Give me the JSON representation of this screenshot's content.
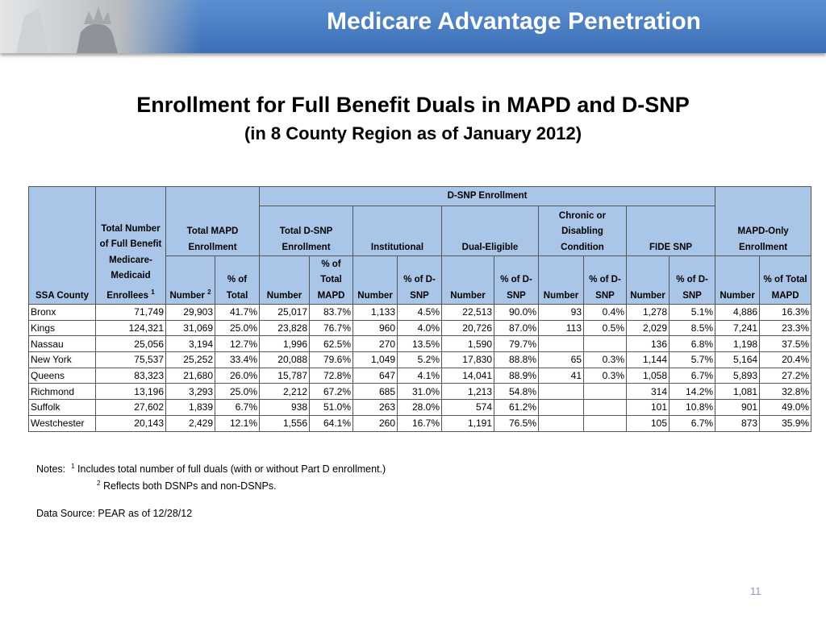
{
  "header": {
    "title": "Medicare Advantage Penetration"
  },
  "heading": {
    "title": "Enrollment for Full Benefit Duals in MAPD and D-SNP",
    "subtitle": "(in 8 County Region as of January 2012)"
  },
  "table": {
    "group": "D-SNP Enrollment",
    "column_groups": [
      "Total MAPD Enrollment",
      "Total D-SNP Enrollment",
      "Institutional",
      "Dual-Eligible",
      "Chronic or Disabling Condition",
      "FIDE SNP",
      "MAPD-Only Enrollment"
    ],
    "columns": [
      "SSA County",
      "Total Number of Full Benefit Medicare-Medicaid Enrollees",
      "Number",
      "% of Total",
      "Number",
      "% of Total MAPD",
      "Number",
      "% of D-SNP",
      "Number",
      "% of D-SNP",
      "Number",
      "% of D-SNP",
      "Number",
      "% of D-SNP",
      "Number",
      "% of Total MAPD"
    ],
    "column_notes": [
      "1",
      "2"
    ],
    "rows": [
      [
        "Bronx",
        "71,749",
        "29,903",
        "41.7%",
        "25,017",
        "83.7%",
        "1,133",
        "4.5%",
        "22,513",
        "90.0%",
        "93",
        "0.4%",
        "1,278",
        "5.1%",
        "4,886",
        "16.3%"
      ],
      [
        "Kings",
        "124,321",
        "31,069",
        "25.0%",
        "23,828",
        "76.7%",
        "960",
        "4.0%",
        "20,726",
        "87.0%",
        "113",
        "0.5%",
        "2,029",
        "8.5%",
        "7,241",
        "23.3%"
      ],
      [
        "Nassau",
        "25,056",
        "3,194",
        "12.7%",
        "1,996",
        "62.5%",
        "270",
        "13.5%",
        "1,590",
        "79.7%",
        null,
        null,
        "136",
        "6.8%",
        "1,198",
        "37.5%"
      ],
      [
        "New York",
        "75,537",
        "25,252",
        "33.4%",
        "20,088",
        "79.6%",
        "1,049",
        "5.2%",
        "17,830",
        "88.8%",
        "65",
        "0.3%",
        "1,144",
        "5.7%",
        "5,164",
        "20.4%"
      ],
      [
        "Queens",
        "83,323",
        "21,680",
        "26.0%",
        "15,787",
        "72.8%",
        "647",
        "4.1%",
        "14,041",
        "88.9%",
        "41",
        "0.3%",
        "1,058",
        "6.7%",
        "5,893",
        "27.2%"
      ],
      [
        "Richmond",
        "13,196",
        "3,293",
        "25.0%",
        "2,212",
        "67.2%",
        "685",
        "31.0%",
        "1,213",
        "54.8%",
        null,
        null,
        "314",
        "14.2%",
        "1,081",
        "32.8%"
      ],
      [
        "Suffolk",
        "27,602",
        "1,839",
        "6.7%",
        "938",
        "51.0%",
        "263",
        "28.0%",
        "574",
        "61.2%",
        null,
        null,
        "101",
        "10.8%",
        "901",
        "49.0%"
      ],
      [
        "Westchester",
        "20,143",
        "2,429",
        "12.1%",
        "1,556",
        "64.1%",
        "260",
        "16.7%",
        "1,191",
        "76.5%",
        null,
        null,
        "105",
        "6.7%",
        "873",
        "35.9%"
      ]
    ]
  },
  "notes": {
    "label": "Notes:",
    "items": [
      {
        "mark": "1",
        "text": "Includes total number of full duals (with or without Part D enrollment.)"
      },
      {
        "mark": "2",
        "text": "Reflects both DSNPs and non-DSNPs."
      }
    ],
    "source": "Data Source: PEAR as of 12/28/12"
  },
  "page_number": "11"
}
